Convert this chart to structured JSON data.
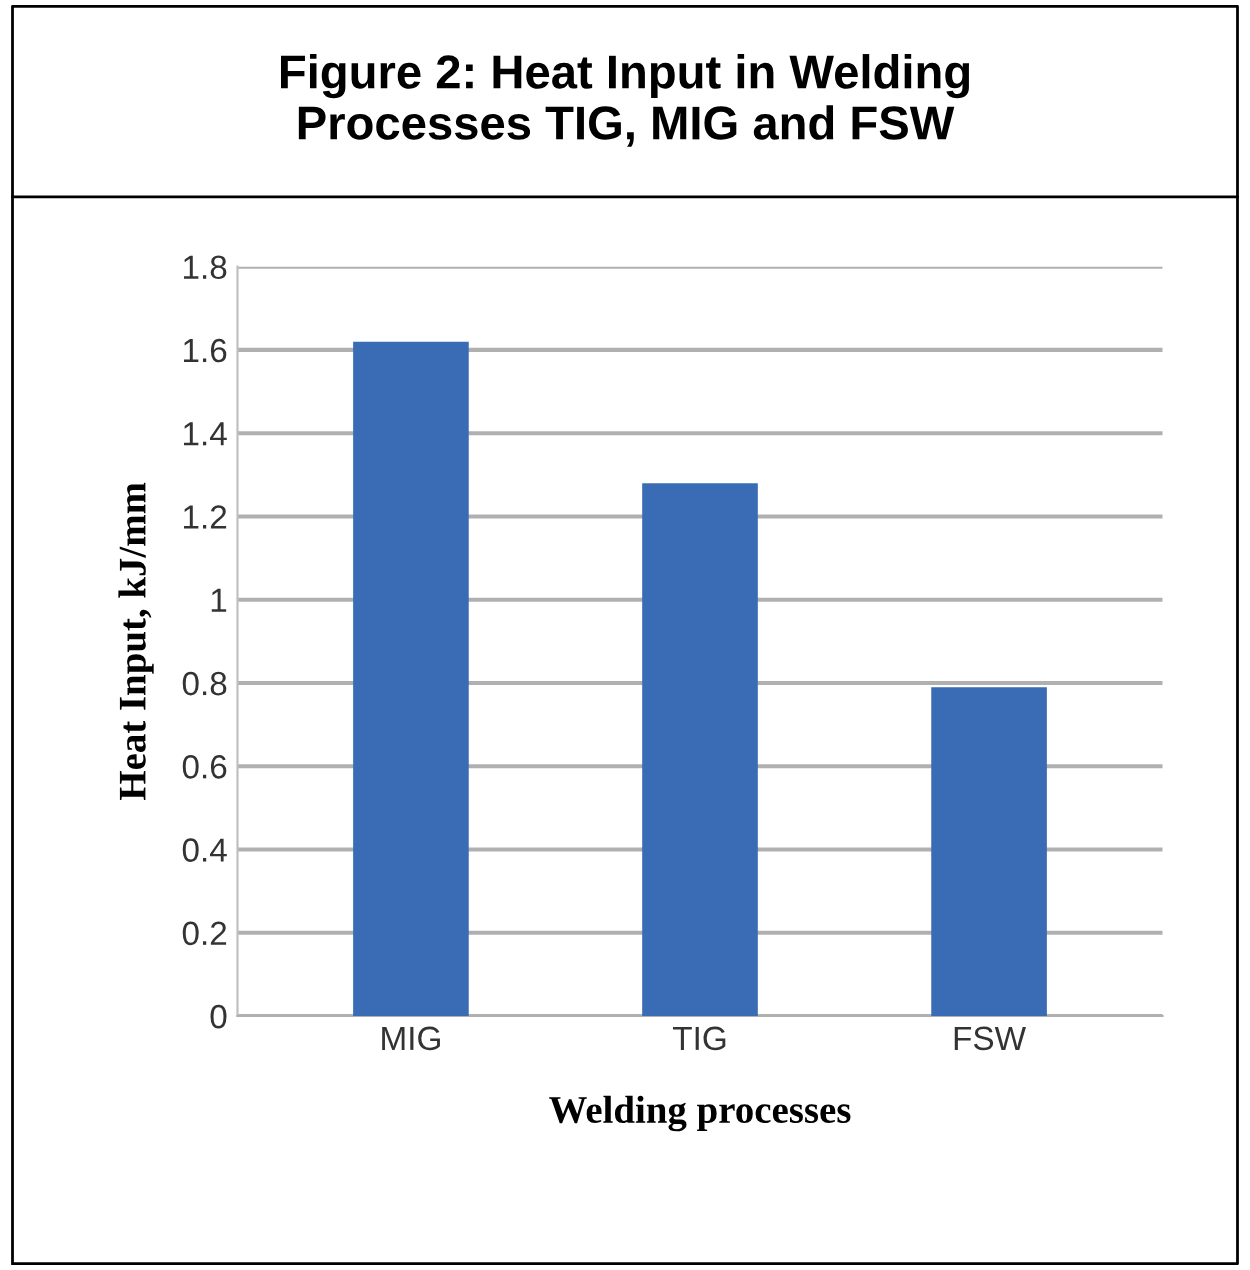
{
  "chart_data": {
    "type": "bar",
    "title": "Figure 2: Heat Input in Welding\nProcesses TIG, MIG and FSW",
    "xlabel": "Welding processes",
    "ylabel": "Heat Input, kJ/mm",
    "categories": [
      "MIG",
      "TIG",
      "FSW"
    ],
    "values": [
      1.62,
      1.28,
      0.79
    ],
    "color": "#3a6bb5",
    "ylim": [
      0,
      1.8
    ],
    "yticks": [
      0,
      0.2,
      0.4,
      0.6,
      0.8,
      1,
      1.2,
      1.4,
      1.6,
      1.8
    ],
    "grid": "y"
  }
}
